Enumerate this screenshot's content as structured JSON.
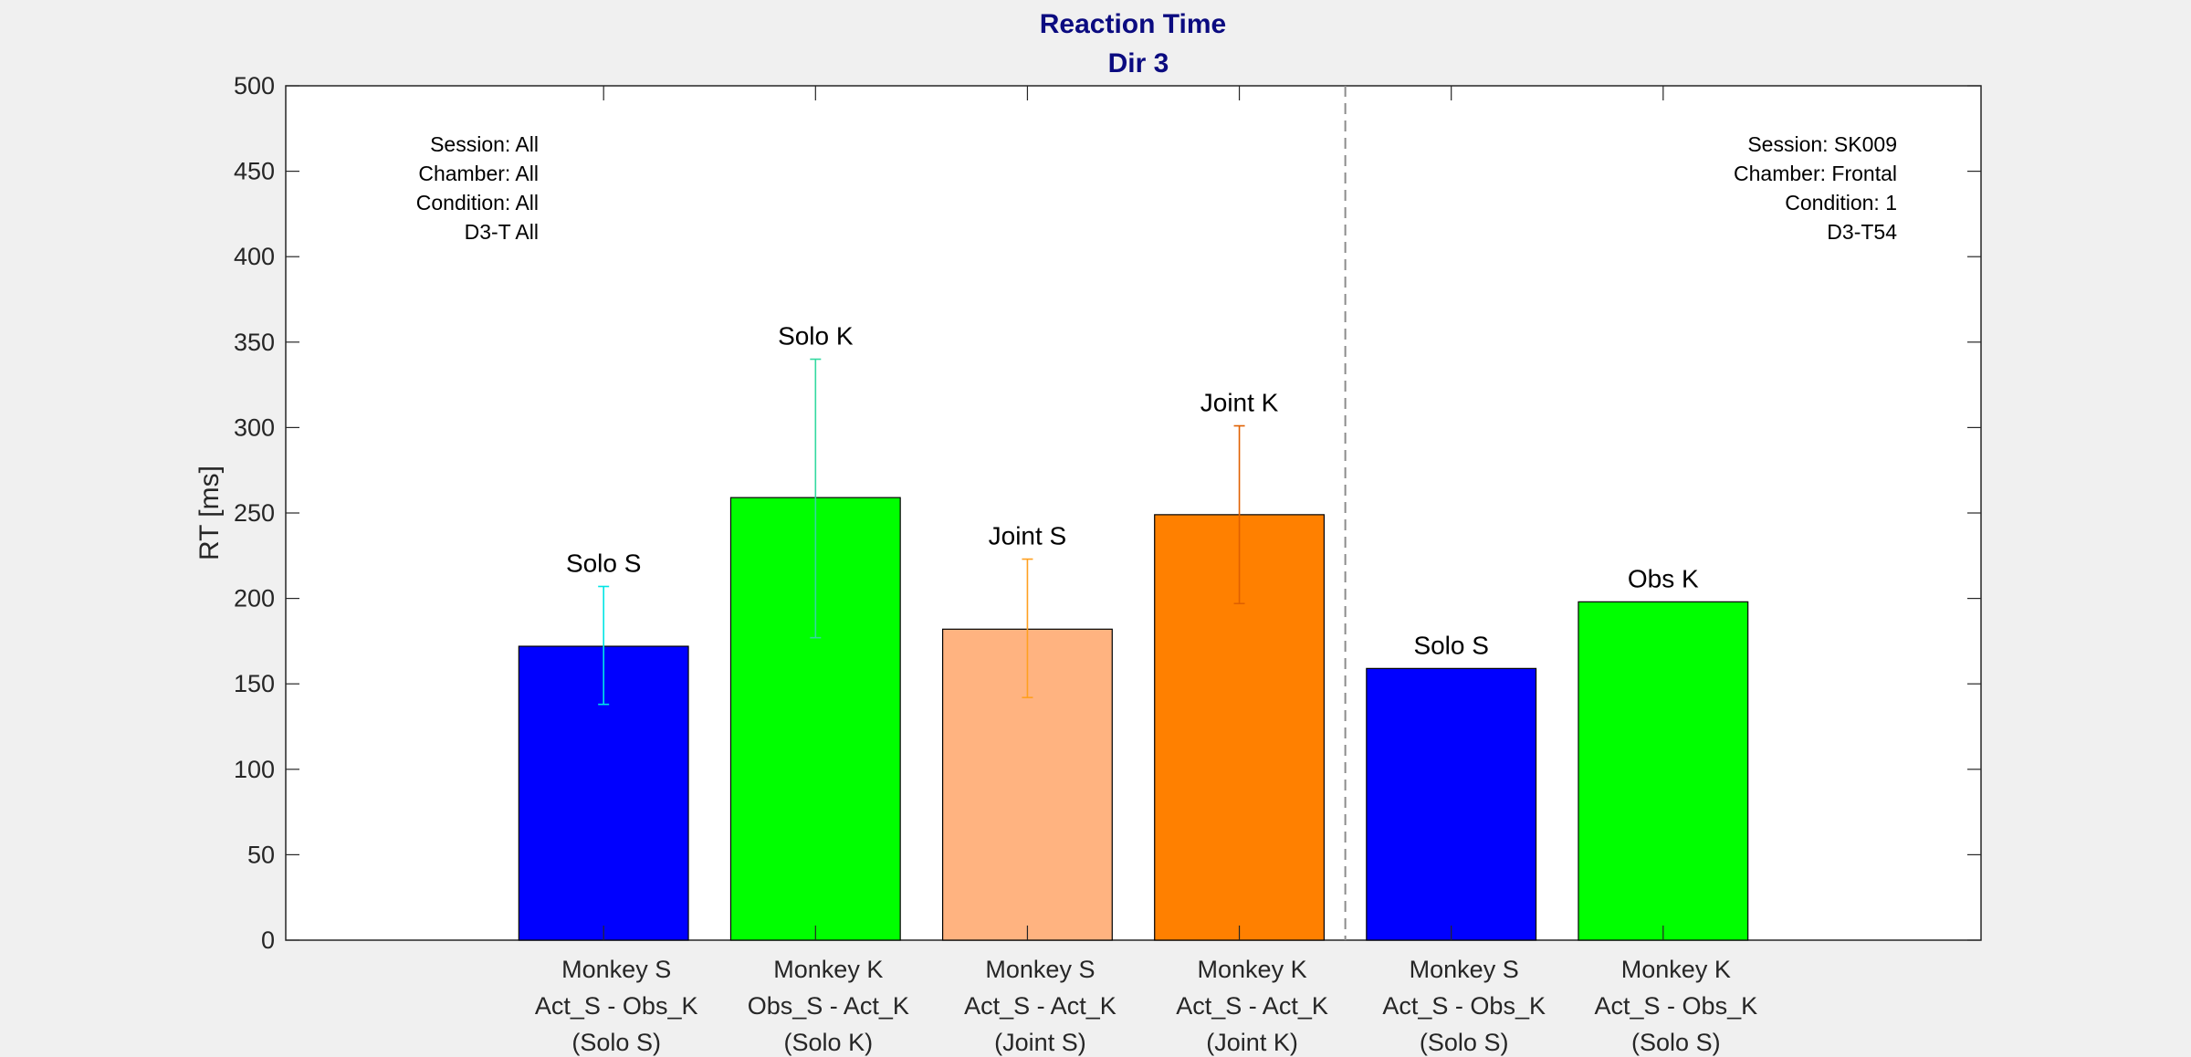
{
  "chart_data": {
    "type": "bar",
    "title": [
      "Reaction Time",
      "Dir 3"
    ],
    "xlabel": "",
    "ylabel": "RT [ms]",
    "ylim": [
      0,
      500
    ],
    "yticks": [
      0,
      50,
      100,
      150,
      200,
      250,
      300,
      350,
      400,
      450,
      500
    ],
    "xlim": [
      0.5,
      8.5
    ],
    "grid": false,
    "separator_x": 5.5,
    "bars": [
      {
        "x": 2,
        "value": 172,
        "error_low": 138,
        "error_high": 207,
        "label": "Solo S",
        "color": "#0000ff",
        "error_color": "#00e5e5",
        "category": [
          "Monkey S",
          "Act_S - Obs_K",
          "(Solo S)"
        ]
      },
      {
        "x": 3,
        "value": 259,
        "error_low": 177,
        "error_high": 340,
        "label": "Solo K",
        "color": "#00ff00",
        "error_color": "#33d9a0",
        "category": [
          "Monkey K",
          "Obs_S - Act_K",
          "(Solo K)"
        ]
      },
      {
        "x": 4,
        "value": 182,
        "error_low": 142,
        "error_high": 223,
        "label": "Joint S",
        "color": "#ffb380",
        "error_color": "#ffa020",
        "category": [
          "Monkey S",
          "Act_S - Act_K",
          "(Joint S)"
        ]
      },
      {
        "x": 5,
        "value": 249,
        "error_low": 197,
        "error_high": 301,
        "label": "Joint K",
        "color": "#ff8000",
        "error_color": "#e06000",
        "category": [
          "Monkey K",
          "Act_S - Act_K",
          "(Joint K)"
        ]
      },
      {
        "x": 6,
        "value": 159,
        "error_low": null,
        "error_high": null,
        "label": "Solo S",
        "color": "#0000ff",
        "error_color": null,
        "category": [
          "Monkey S",
          "Act_S - Obs_K",
          "(Solo S)"
        ]
      },
      {
        "x": 7,
        "value": 198,
        "error_low": null,
        "error_high": null,
        "label": "Obs K",
        "color": "#00ff00",
        "error_color": null,
        "category": [
          "Monkey K",
          "Act_S - Obs_K",
          "(Solo S)"
        ]
      }
    ],
    "annotations": {
      "left": [
        "Session: All",
        "Chamber: All",
        "Condition: All",
        "D3-T All"
      ],
      "right": [
        "Session: SK009",
        "Chamber: Frontal",
        "Condition: 1",
        "D3-T54"
      ]
    }
  }
}
